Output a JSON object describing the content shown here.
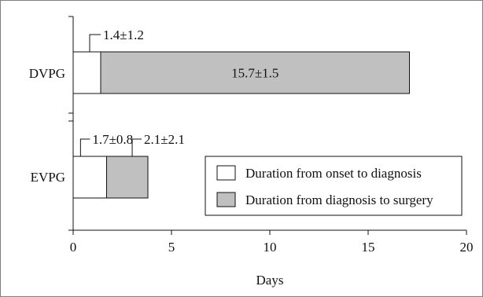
{
  "chart_data": {
    "type": "bar",
    "orientation": "horizontal",
    "stacked": true,
    "categories": [
      "DVPG",
      "EVPG"
    ],
    "series": [
      {
        "name": "Duration from onset to diagnosis",
        "values": [
          1.4,
          1.7
        ],
        "value_labels": [
          "1.4±1.2",
          "1.7±0.8"
        ],
        "color": "#ffffff"
      },
      {
        "name": "Duration from diagnosis to surgery",
        "values": [
          15.7,
          2.1
        ],
        "value_labels": [
          "15.7±1.5",
          "2.1±2.1"
        ],
        "color": "#c0c0c0"
      }
    ],
    "xlabel": "Days",
    "ylabel": "",
    "xlim": [
      0,
      20
    ],
    "xticks": [
      0,
      5,
      10,
      15,
      20
    ],
    "xtick_labels": [
      "0",
      "5",
      "10",
      "15",
      "20"
    ],
    "grid": false,
    "legend_position": "bottom-right"
  }
}
